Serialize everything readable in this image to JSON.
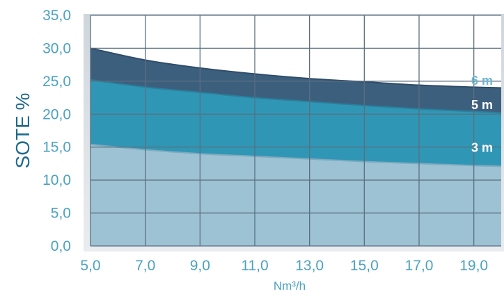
{
  "chart_data": {
    "type": "area",
    "title": "",
    "xlabel": "Nm³/h",
    "ylabel": "SOTE %",
    "xlim": [
      5.0,
      20.0
    ],
    "ylim": [
      0.0,
      35.0
    ],
    "x_ticks": [
      "5,0",
      "7,0",
      "9,0",
      "11,0",
      "13,0",
      "15,0",
      "17,0",
      "19,0"
    ],
    "x_tick_values": [
      5,
      7,
      9,
      11,
      13,
      15,
      17,
      19
    ],
    "y_ticks": [
      "0,0",
      "5,0",
      "10,0",
      "15,0",
      "20,0",
      "25,0",
      "30,0",
      "35,0"
    ],
    "y_tick_values": [
      0,
      5,
      10,
      15,
      20,
      25,
      30,
      35
    ],
    "grid": true,
    "x": [
      5,
      7,
      9,
      11,
      13,
      15,
      17,
      19,
      20
    ],
    "series": [
      {
        "name": "6 m",
        "values": [
          30.0,
          28.2,
          27.0,
          26.1,
          25.4,
          24.9,
          24.4,
          24.1,
          24.0
        ],
        "color": "#3d5f7e"
      },
      {
        "name": "5 m",
        "values": [
          25.2,
          24.1,
          23.3,
          22.5,
          21.9,
          21.3,
          20.8,
          20.4,
          20.2
        ],
        "color": "#2f97b5"
      },
      {
        "name": "3 m",
        "values": [
          15.4,
          14.6,
          14.0,
          13.6,
          13.2,
          12.8,
          12.5,
          12.2,
          12.1
        ],
        "color": "#9cc2d3"
      }
    ],
    "label_colors": {
      "6 m": "#6fb8d2",
      "5 m": "#ffffff",
      "3 m": "#ffffff"
    }
  }
}
